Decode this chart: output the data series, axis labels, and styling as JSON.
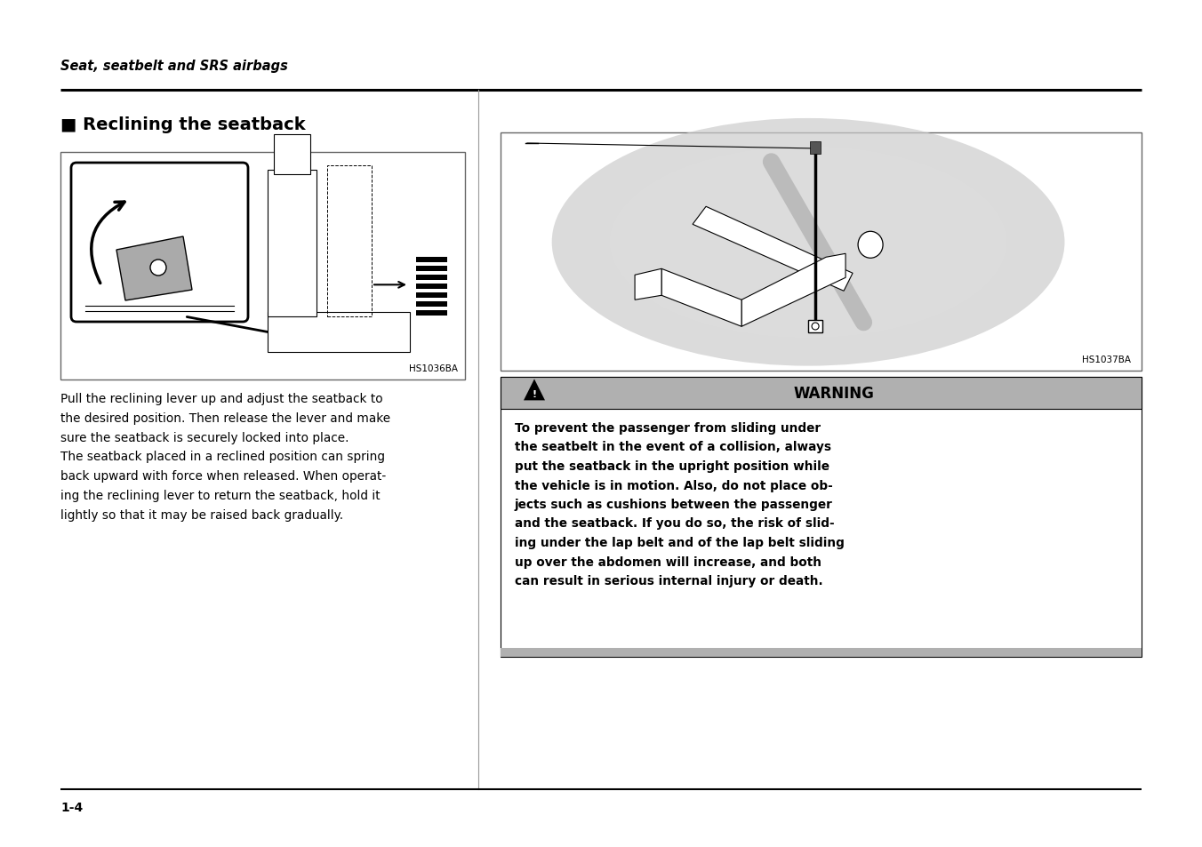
{
  "bg_color": "#ffffff",
  "page_width": 13.52,
  "page_height": 9.54,
  "header_italic_text": "Seat, seatbelt and SRS airbags",
  "section_title": "■ Reclining the seatback",
  "left_image_label": "HS1036BA",
  "right_image_label": "HS1037BA",
  "body_text_line1": "Pull the reclining lever up and adjust the seatback to",
  "body_text_line2": "the desired position. Then release the lever and make",
  "body_text_line3": "sure the seatback is securely locked into place.",
  "body_text_line4": "The seatback placed in a reclined position can spring",
  "body_text_line5": "back upward with force when released. When operat-",
  "body_text_line6": "ing the reclining lever to return the seatback, hold it",
  "body_text_line7": "lightly so that it may be raised back gradually.",
  "warning_header": "WARNING",
  "warning_line1": "To prevent the passenger from sliding under",
  "warning_line2": "the seatbelt in the event of a collision, always",
  "warning_line3": "put the seatback in the upright position while",
  "warning_line4": "the vehicle is in motion. Also, do not place ob-",
  "warning_line5": "jects such as cushions between the passenger",
  "warning_line6": "and the seatback. If you do so, the risk of slid-",
  "warning_line7": "ing under the lap belt and of the lap belt sliding",
  "warning_line8": "up over the abdomen will increase, and both",
  "warning_line9": "can result in serious internal injury or death.",
  "page_number": "1-4",
  "divider_color": "#000000",
  "warning_bg": "#b0b0b0",
  "warning_bottom_bar": "#b0b0b0",
  "center_line_color": "#999999"
}
